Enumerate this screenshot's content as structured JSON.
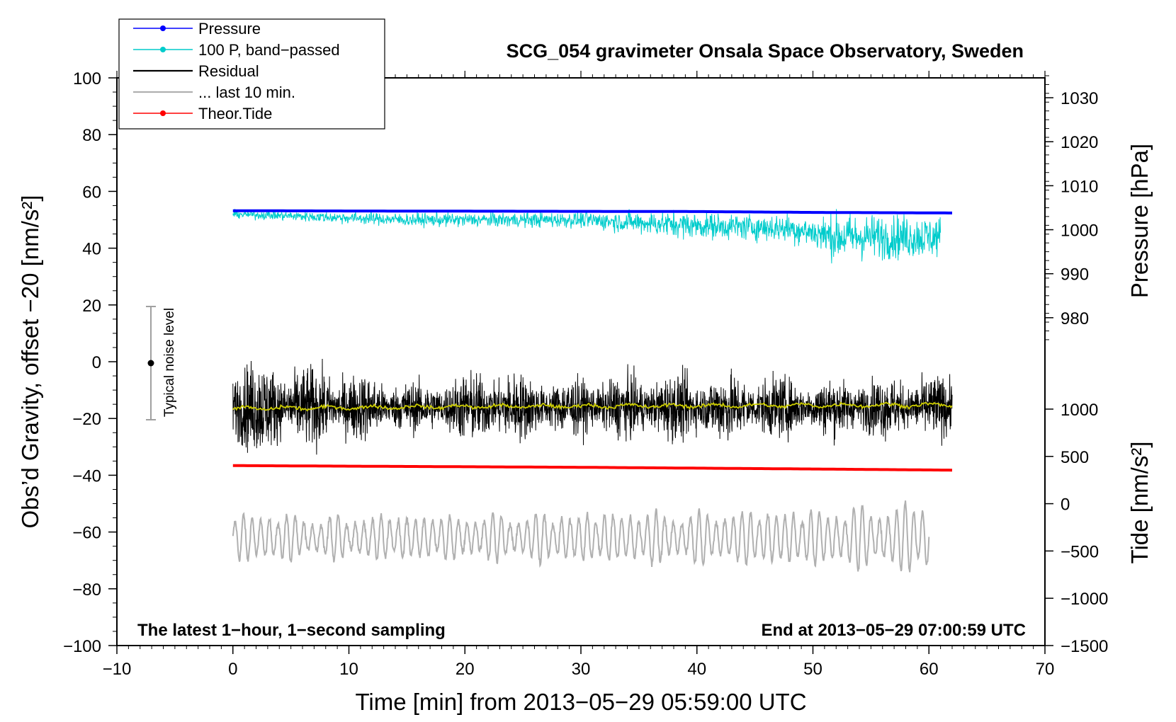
{
  "chart_data": {
    "type": "line",
    "title": "SCG_054 gravimeter Onsala Space Observatory, Sweden",
    "xlabel": "Time [min] from 2013−05−29 05:59:00 UTC",
    "ylabel_left": "Obs’d Gravity, offset −20 [nm/s²]",
    "ylabel_right_pressure": "Pressure [hPa]",
    "ylabel_right_tide": "Tide [nm/s²]",
    "xlim": [
      -10,
      70
    ],
    "ylim": [
      -100,
      100
    ],
    "x_ticks": [
      -10,
      0,
      10,
      20,
      30,
      40,
      50,
      60,
      70
    ],
    "x_tick_labels": [
      "−10",
      "0",
      "10",
      "20",
      "30",
      "40",
      "50",
      "60",
      "70"
    ],
    "y_ticks": [
      -100,
      -80,
      -60,
      -40,
      -20,
      0,
      20,
      40,
      60,
      80,
      100
    ],
    "y_tick_labels": [
      "−100",
      "−80",
      "−60",
      "−40",
      "−20",
      "0",
      "20",
      "40",
      "60",
      "80",
      "100"
    ],
    "pressure_axis": {
      "ticks": [
        980,
        990,
        1000,
        1010,
        1020,
        1030
      ],
      "tick_labels": [
        "980",
        "990",
        "1000",
        "1010",
        "1020",
        "1030"
      ],
      "mapping": {
        "hpa_a": 980,
        "y_a": 15.5,
        "hpa_b": 1030,
        "y_b": 93.0
      }
    },
    "tide_axis": {
      "ticks": [
        -1500,
        -1000,
        -500,
        0,
        500,
        1000
      ],
      "tick_labels": [
        "−1500",
        "−1000",
        "−500",
        "0",
        "500",
        "1000"
      ],
      "mapping": {
        "tide_a": -1500,
        "y_a": -100,
        "tide_b": 1000,
        "y_b": -16.7
      }
    },
    "note_left": "The latest 1−hour, 1−second sampling",
    "note_right": "End at 2013−05−29 07:00:59 UTC",
    "noise_bar": {
      "label": "Typical noise level",
      "x": -7,
      "center": 0,
      "low": -20,
      "high": 20
    },
    "legend": {
      "position": "top-left",
      "entries": [
        {
          "label": "Pressure",
          "color": "#0000ff",
          "marker": true
        },
        {
          "label": "100 P, band−passed",
          "color": "#00cccc",
          "marker": true
        },
        {
          "label": "Residual",
          "color": "#000000",
          "marker": false
        },
        {
          "label": "... last 10 min.",
          "color": "#b0b0b0",
          "marker": false
        },
        {
          "label": "Theor.Tide",
          "color": "#ff0000",
          "marker": true
        }
      ]
    },
    "series": [
      {
        "name": "Pressure",
        "color": "#0000ff",
        "x_range": [
          0,
          62
        ],
        "trend": [
          [
            0,
            53.2
          ],
          [
            10,
            53.1
          ],
          [
            25,
            53.0
          ],
          [
            40,
            52.9
          ],
          [
            50,
            52.6
          ],
          [
            62,
            52.4
          ]
        ]
      },
      {
        "name": "100 P, band−passed",
        "color": "#00cccc",
        "x_range": [
          0,
          61
        ],
        "trend": [
          [
            0,
            52
          ],
          [
            15,
            50
          ],
          [
            30,
            50
          ],
          [
            40,
            48
          ],
          [
            48,
            47
          ],
          [
            52,
            44
          ],
          [
            61,
            44
          ]
        ],
        "amplitude": [
          [
            0,
            1.5
          ],
          [
            15,
            2.5
          ],
          [
            30,
            3
          ],
          [
            38,
            5
          ],
          [
            45,
            5
          ],
          [
            50,
            6
          ],
          [
            52,
            9
          ],
          [
            61,
            8
          ]
        ]
      },
      {
        "name": "Residual",
        "color": "#000000",
        "x_range": [
          0,
          62
        ],
        "mean": -16,
        "amplitude": [
          [
            0,
            14
          ],
          [
            8,
            11
          ],
          [
            16,
            7
          ],
          [
            22,
            11
          ],
          [
            28,
            8
          ],
          [
            42,
            10
          ],
          [
            50,
            8
          ],
          [
            62,
            9
          ]
        ]
      },
      {
        "name": "Residual smoothed",
        "color": "#cccc00",
        "x_range": [
          0,
          62
        ],
        "trend": [
          [
            0,
            -16.5
          ],
          [
            20,
            -15.8
          ],
          [
            40,
            -15.5
          ],
          [
            62,
            -15.2
          ]
        ]
      },
      {
        "name": "... last 10 min.",
        "color": "#b0b0b0",
        "x_range": [
          0,
          60
        ],
        "mean": -62,
        "amplitude": [
          [
            0,
            8
          ],
          [
            10,
            7
          ],
          [
            30,
            8
          ],
          [
            50,
            9
          ],
          [
            58,
            11
          ],
          [
            60,
            12
          ]
        ]
      },
      {
        "name": "Theor.Tide",
        "color": "#ff0000",
        "x_range": [
          0,
          62
        ],
        "trend": [
          [
            0,
            -36.6
          ],
          [
            10,
            -36.8
          ],
          [
            20,
            -37.0
          ],
          [
            30,
            -37.2
          ],
          [
            40,
            -37.5
          ],
          [
            50,
            -37.8
          ],
          [
            62,
            -38.2
          ]
        ]
      }
    ]
  }
}
